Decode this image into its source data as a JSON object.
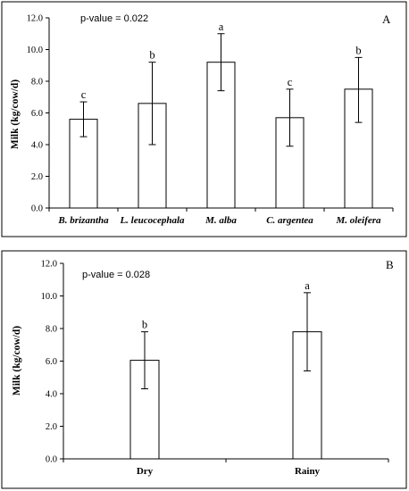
{
  "chart_data": [
    {
      "type": "bar",
      "panel": "A",
      "pvalue_text": "p-value = 0.022",
      "ylabel": "Milk (kg/cow/d)",
      "ylim": [
        0,
        12
      ],
      "yticks": [
        "0.0",
        "2.0",
        "4.0",
        "6.0",
        "8.0",
        "10.0",
        "12.0"
      ],
      "categories": [
        "B. brizantha",
        "L. leucocephala",
        "M. alba",
        "C. argentea",
        "M. oleifera"
      ],
      "values": [
        5.6,
        6.6,
        9.2,
        5.7,
        7.5
      ],
      "err_low": [
        4.5,
        4.0,
        7.4,
        3.9,
        5.4
      ],
      "err_high": [
        6.7,
        9.2,
        11.0,
        7.5,
        9.5
      ],
      "letters": [
        "c",
        "b",
        "a",
        "c",
        "b"
      ],
      "grid": false
    },
    {
      "type": "bar",
      "panel": "B",
      "pvalue_text": "p-value = 0.028",
      "ylabel": "Milk (kg/cow/d)",
      "ylim": [
        0,
        12
      ],
      "yticks": [
        "0.0",
        "2.0",
        "4.0",
        "6.0",
        "8.0",
        "10.0",
        "12.0"
      ],
      "categories": [
        "Dry",
        "Rainy"
      ],
      "values": [
        6.05,
        7.8
      ],
      "err_low": [
        4.3,
        5.4
      ],
      "err_high": [
        7.8,
        10.2
      ],
      "letters": [
        "b",
        "a"
      ],
      "grid": false
    }
  ]
}
